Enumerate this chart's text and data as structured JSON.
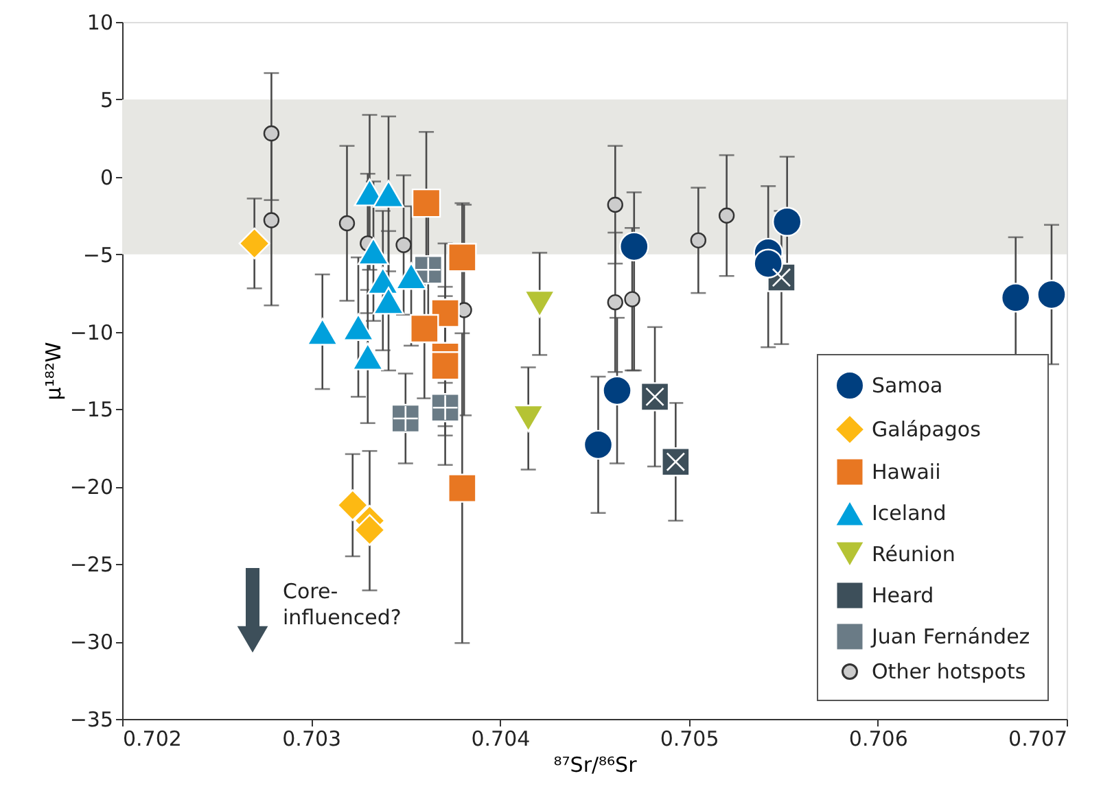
{
  "chart_data": {
    "type": "scatter",
    "xlabel": "⁸⁷Sr/⁸⁶Sr",
    "ylabel": "μ¹⁸²W",
    "xlim": [
      0.702,
      0.707
    ],
    "xticks": [
      0.702,
      0.703,
      0.704,
      0.705,
      0.706,
      0.707
    ],
    "ylim": [
      -35,
      10
    ],
    "yticks": [
      -35,
      -30,
      -25,
      -20,
      -15,
      -10,
      -5,
      0,
      5,
      10
    ],
    "grid": false,
    "legend": "bottom right",
    "bands": [
      {
        "axis": "y",
        "from": -5,
        "to": 5,
        "color": "#e7e7e3"
      }
    ],
    "annotations": [
      "Core-\ninfluenced?"
    ],
    "series": [
      {
        "name": "Samoa",
        "color": "#003f7f",
        "marker": "circle",
        "x": [
          0.70471,
          0.70462,
          0.70452,
          0.70552,
          0.70542,
          0.70542,
          0.70673,
          0.70692
        ],
        "values": [
          -4.5,
          -13.8,
          -17.3,
          -2.9,
          -4.9,
          -5.6,
          -7.8,
          -7.6
        ],
        "errors": [
          [
            -12.5,
            -1.0
          ],
          4.7,
          4.4,
          4.2,
          [
            -11.0,
            -0.6
          ],
          null,
          3.9,
          4.5
        ]
      },
      {
        "name": "Galápagos",
        "color": "#fdb913",
        "marker": "diamond",
        "x": [
          0.7027,
          0.70322,
          0.70331,
          0.70331
        ],
        "values": [
          -4.3,
          -21.2,
          -22.2,
          -22.8
        ],
        "errors": [
          2.9,
          3.3,
          4.5,
          null
        ]
      },
      {
        "name": "Hawaii",
        "color": "#e87722",
        "marker": "square",
        "x": [
          0.70361,
          0.7038,
          0.70371,
          0.7036,
          0.70371,
          0.70371,
          0.7038
        ],
        "values": [
          -1.7,
          -5.2,
          -8.8,
          -9.8,
          -11.6,
          -12.2,
          -20.1
        ],
        "errors": [
          4.6,
          3.5,
          4.5,
          4.5,
          4.5,
          4.5,
          10
        ]
      },
      {
        "name": "Iceland",
        "color": "#00a0dc",
        "marker": "triangle",
        "x": [
          0.70331,
          0.70341,
          0.70333,
          0.70353,
          0.70338,
          0.70341,
          0.70306,
          0.70325,
          0.7033
        ],
        "values": [
          -1.0,
          -1.1,
          -4.8,
          -6.4,
          -6.7,
          -8.0,
          -10.0,
          -9.7,
          -11.6
        ],
        "errors": [
          5,
          5,
          4.5,
          4.5,
          4.5,
          4.5,
          3.7,
          4.5,
          4.3
        ]
      },
      {
        "name": "Réunion",
        "color": "#b5c334",
        "marker": "triangle-down",
        "x": [
          0.70421,
          0.70415
        ],
        "values": [
          -8.2,
          -15.6
        ],
        "errors": [
          3.3,
          3.3
        ]
      },
      {
        "name": "Heard",
        "color": "#3d4f5a",
        "marker": "square-x",
        "x": [
          0.70549,
          0.70482,
          0.70493
        ],
        "values": [
          -6.5,
          -14.2,
          -18.4
        ],
        "errors": [
          4.3,
          4.5,
          3.8
        ]
      },
      {
        "name": "Juan Fernández",
        "color": "#6a7b86",
        "marker": "square-plus",
        "x": [
          0.70362,
          0.7035,
          0.70371
        ],
        "values": [
          -6.0,
          -15.6,
          -14.9
        ],
        "errors": [
          3.5,
          2.9,
          3.7
        ]
      },
      {
        "name": "Other hotspots",
        "color": "#cccccc",
        "marker": "circle-small",
        "x": [
          0.70279,
          0.70279,
          0.70319,
          0.7033,
          0.70349,
          0.70381,
          0.70461,
          0.70461,
          0.7047,
          0.70505,
          0.7052
        ],
        "values": [
          2.8,
          -2.8,
          -3.0,
          -4.3,
          -4.4,
          -8.6,
          -1.8,
          -8.1,
          -7.9,
          -4.1,
          -2.5
        ],
        "errors": [
          [
            -1.5,
            6.7
          ],
          [
            -8.3,
            2.7
          ],
          5,
          4.5,
          4.5,
          6.8,
          3.8,
          4.5,
          4.6,
          3.4,
          3.9
        ]
      }
    ]
  }
}
